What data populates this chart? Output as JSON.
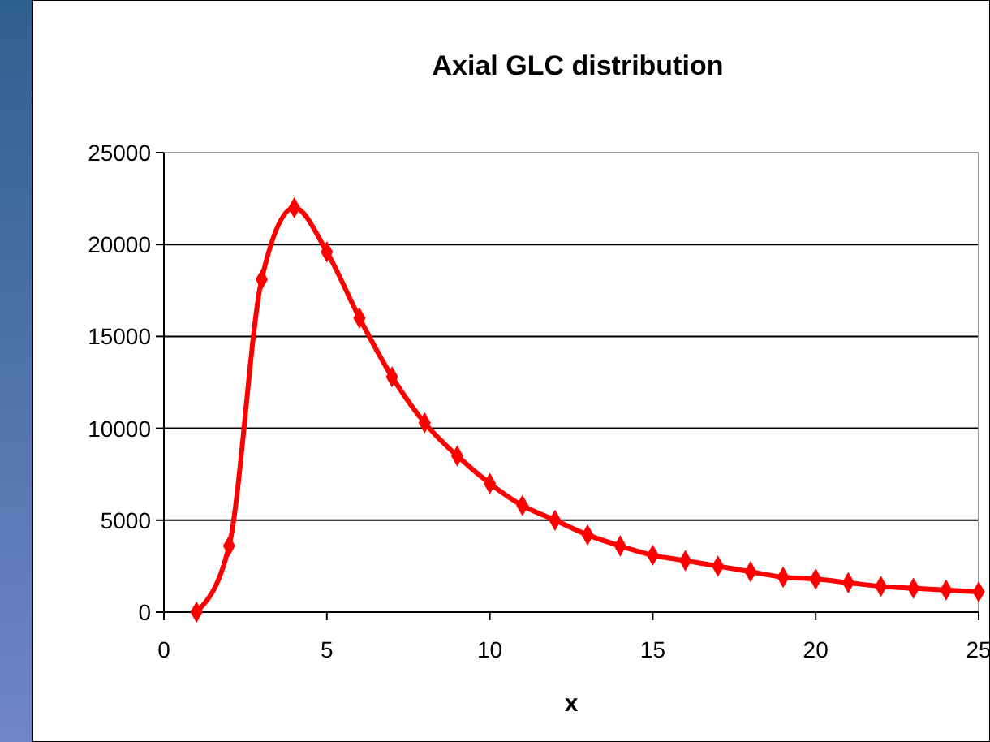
{
  "chart_data": {
    "type": "line",
    "title": "Axial GLC distribution",
    "xlabel": "x",
    "x": [
      1,
      2,
      3,
      4,
      5,
      6,
      7,
      8,
      9,
      10,
      11,
      12,
      13,
      14,
      15,
      16,
      17,
      18,
      19,
      20,
      21,
      22,
      23,
      24,
      25
    ],
    "series": [
      {
        "color": "#ff0000",
        "values": [
          0,
          3600,
          18100,
          22000,
          19600,
          16000,
          12800,
          10300,
          8500,
          7000,
          5800,
          5000,
          4200,
          3600,
          3100,
          2800,
          2500,
          2200,
          1900,
          1800,
          1600,
          1400,
          1300,
          1200,
          1100
        ]
      }
    ],
    "xlim": [
      0,
      25
    ],
    "xticks": [
      0,
      5,
      10,
      15,
      20,
      25
    ],
    "ylim": [
      0,
      25000
    ],
    "yticks": [
      0,
      5000,
      10000,
      15000,
      20000,
      25000
    ],
    "grid": "y",
    "marker": "diamond",
    "line_style": "solid"
  }
}
